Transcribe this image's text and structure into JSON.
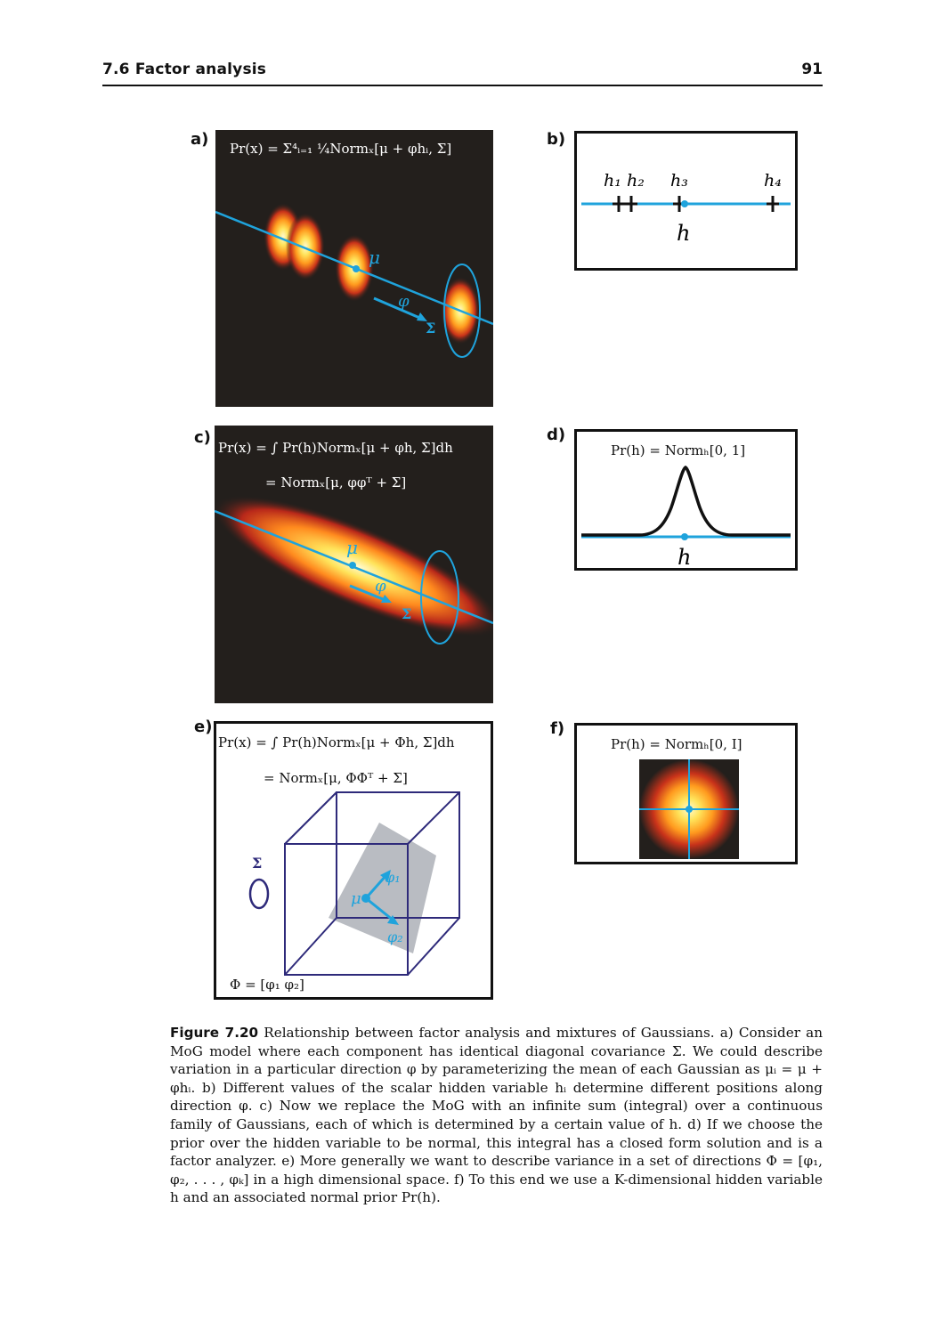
{
  "header": {
    "section": "7.6   Factor analysis",
    "page_number": "91"
  },
  "panels": {
    "a": {
      "label": "a)",
      "equation": "Pr(x) = Σ⁴ᵢ₌₁ ¼Normₓ[μ + φhᵢ, Σ]",
      "mu": "μ",
      "phi": "φ",
      "sigma": "Σ"
    },
    "b": {
      "label": "b)",
      "h1": "h₁",
      "h2": "h₂",
      "h3": "h₃",
      "h4": "h₄",
      "h": "h"
    },
    "c": {
      "label": "c)",
      "equation_line1": "Pr(x) = ∫ Pr(h)Normₓ[μ + φh, Σ]dh",
      "equation_line2": "= Normₓ[μ, φφᵀ + Σ]",
      "mu": "μ",
      "phi": "φ",
      "sigma": "Σ"
    },
    "d": {
      "label": "d)",
      "equation": "Pr(h) = Normₕ[0, 1]",
      "h": "h"
    },
    "e": {
      "label": "e)",
      "equation_line1": "Pr(x) = ∫ Pr(h)Normₓ[μ + Φh, Σ]dh",
      "equation_line2": "= Normₓ[μ, ΦΦᵀ + Σ]",
      "sigma": "Σ",
      "mu": "μ",
      "phi1": "φ₁",
      "phi2": "φ₂",
      "phi_def": "Φ = [φ₁  φ₂]"
    },
    "f": {
      "label": "f)",
      "equation": "Pr(h) = Normₕ[0, I]"
    }
  },
  "caption": {
    "figure_label": "Figure 7.20",
    "text": "Relationship between factor analysis and mixtures of Gaussians. a) Consider an MoG model where each component has identical diagonal covariance Σ. We could describe variation in a particular direction φ by parameterizing the mean of each Gaussian as μᵢ = μ + φhᵢ. b) Different values of the scalar hidden variable hᵢ determine different positions along direction φ. c) Now we replace the MoG with an infinite sum (integral) over a continuous family of Gaussians, each of which is determined by a certain value of h. d) If we choose the prior over the hidden variable to be normal, this integral has a closed form solution and is a factor analyzer. e) More generally we want to describe variance in a set of directions Φ = [φ₁, φ₂, . . . , φₖ] in a high dimensional space. f) To this end we use a K-dimensional hidden variable h and an associated normal prior Pr(h)."
  },
  "colors": {
    "accent": "#1fa3dc",
    "dark_bg": "#231f1c",
    "cube": "#2e2a7a",
    "plane": "#b9bcc2"
  }
}
